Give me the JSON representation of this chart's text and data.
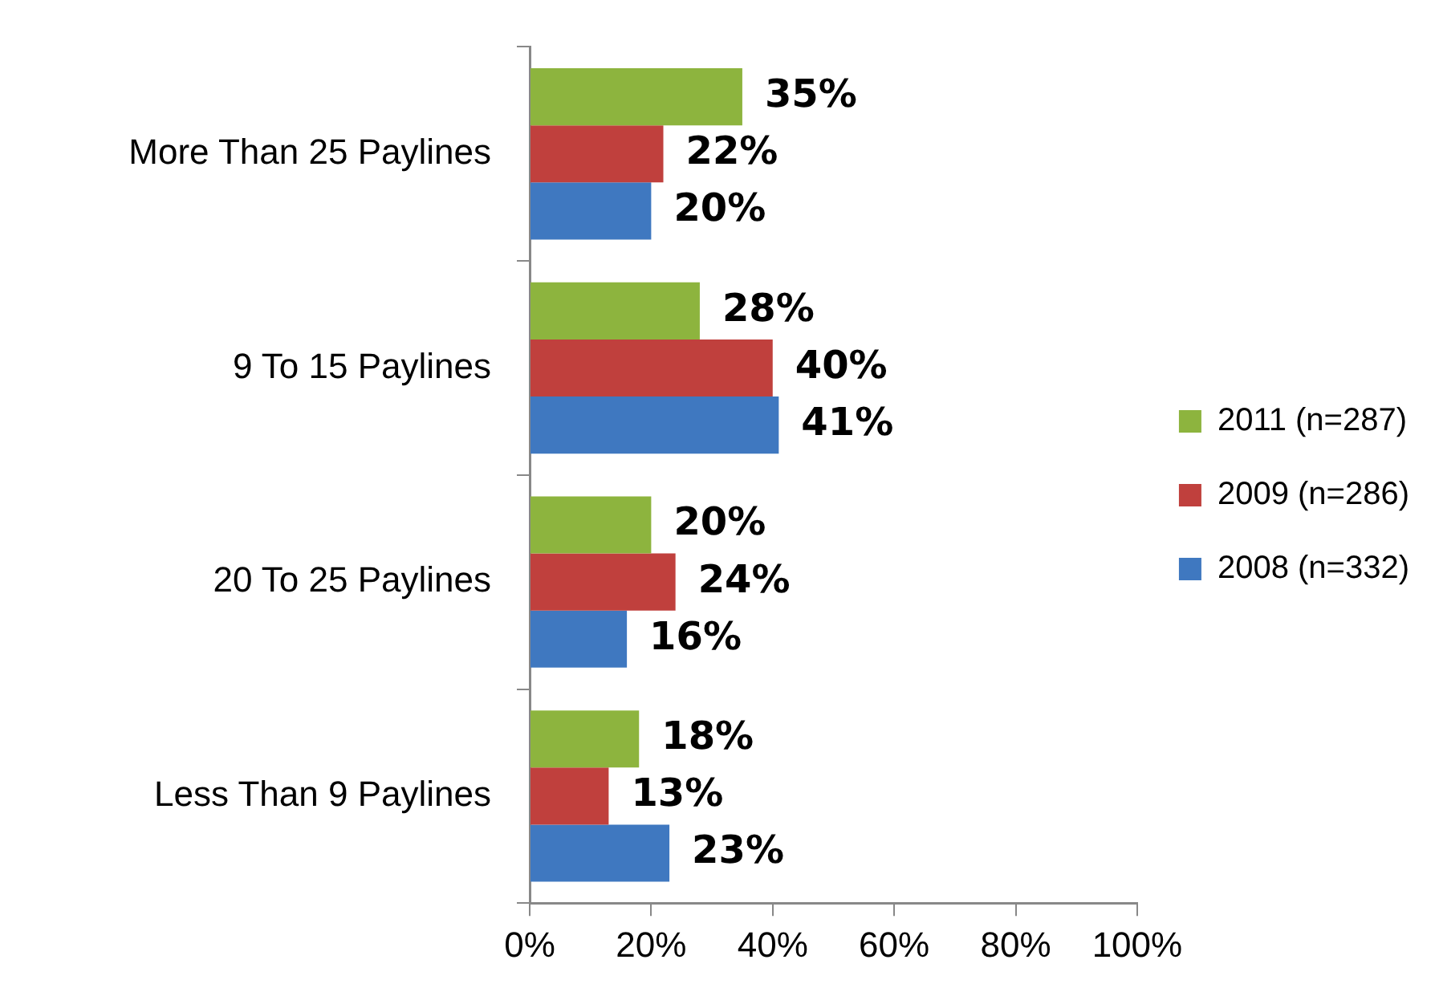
{
  "chart_data": {
    "type": "bar",
    "orientation": "horizontal",
    "categories": [
      "More Than 25 Paylines",
      "9 To 15 Paylines",
      "20 To 25 Paylines",
      "Less Than 9 Paylines"
    ],
    "series": [
      {
        "name": "2011 (n=287)",
        "color": "#8db43e",
        "values": [
          35,
          28,
          20,
          18
        ],
        "value_labels": [
          "35%",
          "28%",
          "20%",
          "18%"
        ]
      },
      {
        "name": "2009 (n=286)",
        "color": "#c0403d",
        "values": [
          22,
          40,
          24,
          13
        ],
        "value_labels": [
          "22%",
          "40%",
          "24%",
          "13%"
        ]
      },
      {
        "name": "2008 (n=332)",
        "color": "#3f78c0",
        "values": [
          20,
          41,
          16,
          23
        ],
        "value_labels": [
          "20%",
          "41%",
          "16%",
          "23%"
        ]
      }
    ],
    "xlim": [
      0,
      100
    ],
    "xticks": [
      {
        "value": 0,
        "label": "0%"
      },
      {
        "value": 20,
        "label": "20%"
      },
      {
        "value": 40,
        "label": "40%"
      },
      {
        "value": 60,
        "label": "60%"
      },
      {
        "value": 80,
        "label": "80%"
      },
      {
        "value": 100,
        "label": "100%"
      }
    ],
    "grid": false,
    "legend": "right"
  }
}
